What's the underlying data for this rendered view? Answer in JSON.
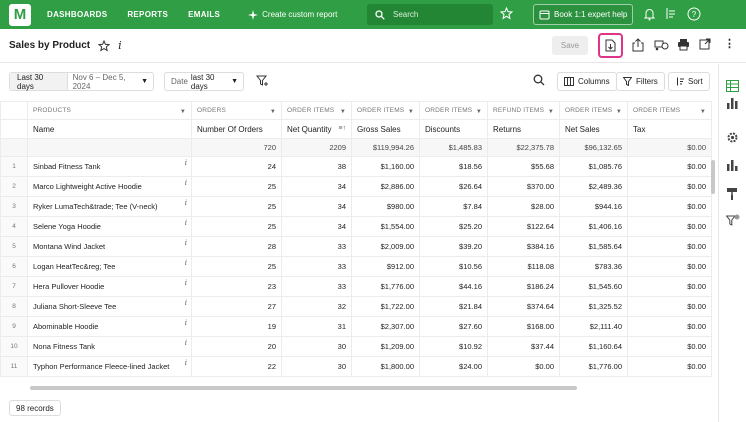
{
  "nav": {
    "logo": "M",
    "links": [
      "DASHBOARDS",
      "REPORTS",
      "EMAILS"
    ],
    "create_report": "Create custom report",
    "search_placeholder": "Search",
    "book": "Book 1:1 expert help"
  },
  "header": {
    "title": "Sales by Product",
    "save": "Save"
  },
  "filters": {
    "period_label": "Last 30 days",
    "period_range": "Nov 6 – Dec 5, 2024",
    "date_prefix": "Date",
    "date_value": "last 30 days",
    "columns": "Columns",
    "filters": "Filters",
    "sort": "Sort"
  },
  "table": {
    "groups": [
      "PRODUCTS",
      "ORDERS",
      "ORDER ITEMS",
      "ORDER ITEMS",
      "ORDER ITEMS",
      "REFUND ITEMS",
      "ORDER ITEMS",
      "ORDER ITEMS"
    ],
    "columns": [
      "Name",
      "Number Of Orders",
      "Net Quantity",
      "Gross Sales",
      "Discounts",
      "Returns",
      "Net Sales",
      "Tax"
    ],
    "totals": [
      "",
      "720",
      "2209",
      "$119,994.26",
      "$1,485.83",
      "$22,375.78",
      "$96,132.65",
      "$0.00"
    ],
    "rows": [
      [
        "1",
        "Sinbad Fitness Tank",
        "24",
        "38",
        "$1,160.00",
        "$18.56",
        "$55.68",
        "$1,085.76",
        "$0.00"
      ],
      [
        "2",
        "Marco Lightweight Active Hoodie",
        "25",
        "34",
        "$2,886.00",
        "$26.64",
        "$370.00",
        "$2,489.36",
        "$0.00"
      ],
      [
        "3",
        "Ryker LumaTech&trade; Tee (V-neck)",
        "25",
        "34",
        "$980.00",
        "$7.84",
        "$28.00",
        "$944.16",
        "$0.00"
      ],
      [
        "4",
        "Selene Yoga Hoodie",
        "25",
        "34",
        "$1,554.00",
        "$25.20",
        "$122.64",
        "$1,406.16",
        "$0.00"
      ],
      [
        "5",
        "Montana Wind Jacket",
        "28",
        "33",
        "$2,009.00",
        "$39.20",
        "$384.16",
        "$1,585.64",
        "$0.00"
      ],
      [
        "6",
        "Logan  HeatTec&reg; Tee",
        "25",
        "33",
        "$912.00",
        "$10.56",
        "$118.08",
        "$783.36",
        "$0.00"
      ],
      [
        "7",
        "Hera Pullover Hoodie",
        "23",
        "33",
        "$1,776.00",
        "$44.16",
        "$186.24",
        "$1,545.60",
        "$0.00"
      ],
      [
        "8",
        "Juliana Short-Sleeve Tee",
        "27",
        "32",
        "$1,722.00",
        "$21.84",
        "$374.64",
        "$1,325.52",
        "$0.00"
      ],
      [
        "9",
        "Abominable Hoodie",
        "19",
        "31",
        "$2,307.00",
        "$27.60",
        "$168.00",
        "$2,111.40",
        "$0.00"
      ],
      [
        "10",
        "Nona Fitness Tank",
        "20",
        "30",
        "$1,209.00",
        "$10.92",
        "$37.44",
        "$1,160.64",
        "$0.00"
      ],
      [
        "11",
        "Typhon Performance Fleece-lined Jacket",
        "22",
        "30",
        "$1,800.00",
        "$24.00",
        "$0.00",
        "$1,776.00",
        "$0.00"
      ]
    ]
  },
  "footer": {
    "records": "98 records"
  },
  "colors": {
    "brand": "#2f9e44",
    "highlight": "#e0338a"
  }
}
